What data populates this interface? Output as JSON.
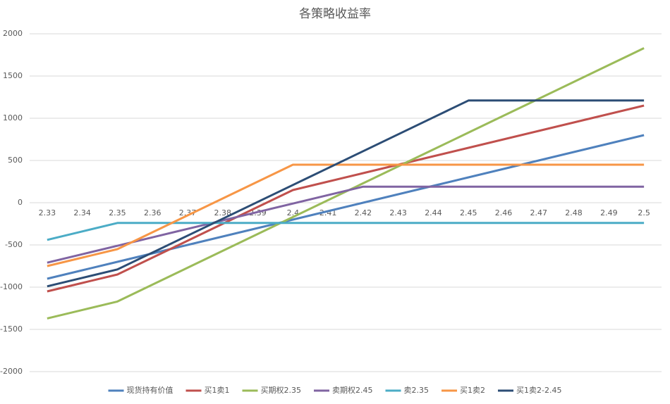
{
  "chart_data": {
    "type": "line",
    "title": "各策略收益率",
    "categories": [
      "2.33",
      "2.34",
      "2.35",
      "2.36",
      "2.37",
      "2.38",
      "2.39",
      "2.4",
      "2.41",
      "2.42",
      "2.43",
      "2.44",
      "2.45",
      "2.46",
      "2.47",
      "2.48",
      "2.49",
      "2.5"
    ],
    "series": [
      {
        "name": "现货持有价值",
        "color": "#4f81bd",
        "values": [
          -900,
          -800,
          -700,
          -600,
          -500,
          -400,
          -300,
          -200,
          -100,
          0,
          100,
          200,
          300,
          400,
          500,
          600,
          700,
          800
        ]
      },
      {
        "name": "买1卖1",
        "color": "#c0504d",
        "values": [
          -1050,
          -950,
          -850,
          -650,
          -450,
          -250,
          -50,
          150,
          250,
          350,
          450,
          550,
          650,
          750,
          850,
          950,
          1050,
          1150
        ]
      },
      {
        "name": "买期权2.35",
        "color": "#9bbb59",
        "values": [
          -1370,
          -1270,
          -1170,
          -970,
          -770,
          -570,
          -370,
          -170,
          30,
          230,
          430,
          630,
          830,
          1030,
          1230,
          1430,
          1630,
          1830
        ]
      },
      {
        "name": "卖期权2.45",
        "color": "#8064a2",
        "values": [
          -710,
          -610,
          -510,
          -410,
          -310,
          -210,
          -110,
          -10,
          90,
          190,
          190,
          190,
          190,
          190,
          190,
          190,
          190,
          190
        ]
      },
      {
        "name": "卖2.35",
        "color": "#4bacc6",
        "values": [
          -440,
          -340,
          -240,
          -240,
          -240,
          -240,
          -240,
          -240,
          -240,
          -240,
          -240,
          -240,
          -240,
          -240,
          -240,
          -240,
          -240,
          -240
        ]
      },
      {
        "name": "买1卖2",
        "color": "#f79646",
        "values": [
          -750,
          -650,
          -550,
          -350,
          -150,
          50,
          250,
          450,
          450,
          450,
          450,
          450,
          450,
          450,
          450,
          450,
          450,
          450
        ]
      },
      {
        "name": "买1卖2-2.45",
        "color": "#2c4d75",
        "values": [
          -990,
          -890,
          -790,
          -590,
          -390,
          -190,
          10,
          210,
          410,
          610,
          810,
          1010,
          1210,
          1210,
          1210,
          1210,
          1210,
          1210
        ]
      }
    ],
    "ylim": [
      -2000,
      2000
    ],
    "yticks": [
      -2000,
      -1500,
      -1000,
      -500,
      0,
      500,
      1000,
      1500,
      2000
    ],
    "grid": true,
    "legend": "bottom"
  }
}
